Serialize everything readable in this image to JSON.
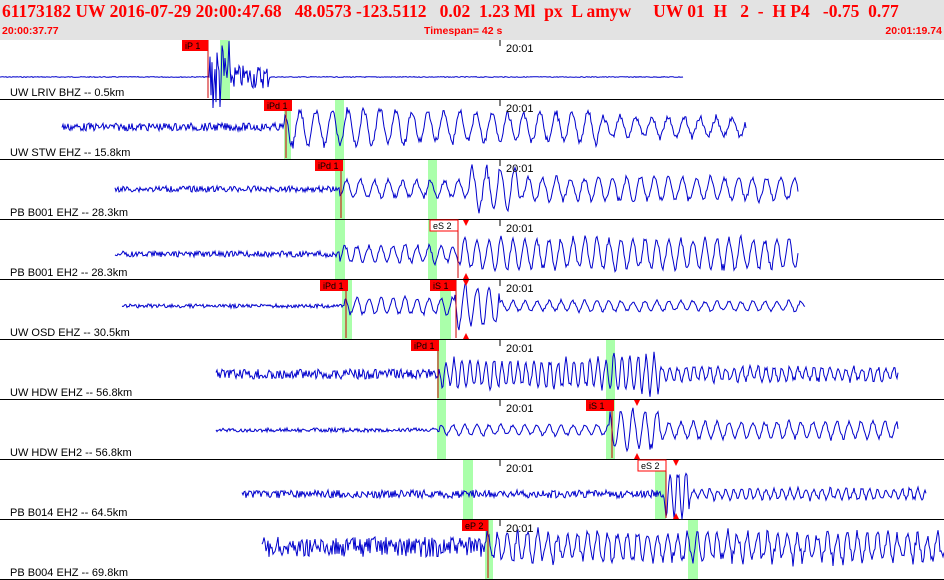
{
  "header": {
    "title": "61173182 UW 2016-07-29 20:00:47.68   48.0573 -123.5112   0.02  1.23 Ml  px  L amyw     UW 01  H   2  -  H P4   -0.75  0.77",
    "start_time": "20:00:37.77",
    "end_time": "20:01:19.74",
    "timespan": "Timespan=  42 s"
  },
  "colors": {
    "trace": "#0000cc",
    "pick_box": "#ff0000",
    "pick_window": "#aaffaa",
    "header_text": "#ff0000",
    "header_bg": "#e3e3e3"
  },
  "traces": [
    {
      "channel": "UW LRIV BHZ -- 0.5km",
      "minute_label": "20:01",
      "picks": [
        {
          "label": "iP 1"
        }
      ]
    },
    {
      "channel": "UW STW EHZ -- 15.8km",
      "minute_label": "20:01",
      "picks": [
        {
          "label": "iPd 1"
        }
      ]
    },
    {
      "channel": "PB B001 EHZ -- 28.3km",
      "minute_label": "20:01",
      "picks": [
        {
          "label": "iPd 1"
        }
      ]
    },
    {
      "channel": "PB B001 EH2 -- 28.3km",
      "minute_label": "20:01",
      "picks": [
        {
          "label": "eS 2"
        }
      ]
    },
    {
      "channel": "UW OSD EHZ -- 30.5km",
      "minute_label": "20:01",
      "picks": [
        {
          "label": "iPd 1"
        },
        {
          "label": "iS 1"
        }
      ]
    },
    {
      "channel": "UW HDW EHZ -- 56.8km",
      "minute_label": "20:01",
      "picks": [
        {
          "label": "iPd 1"
        }
      ]
    },
    {
      "channel": "UW HDW EH2 -- 56.8km",
      "minute_label": "20:01",
      "picks": [
        {
          "label": "iS 1"
        }
      ]
    },
    {
      "channel": "PB B014 EH2 -- 64.5km",
      "minute_label": "20:01",
      "picks": [
        {
          "label": "eS 2"
        }
      ]
    },
    {
      "channel": "PB B004 EHZ -- 69.8km",
      "minute_label": "20:01",
      "picks": [
        {
          "label": "eP 2"
        }
      ]
    }
  ]
}
